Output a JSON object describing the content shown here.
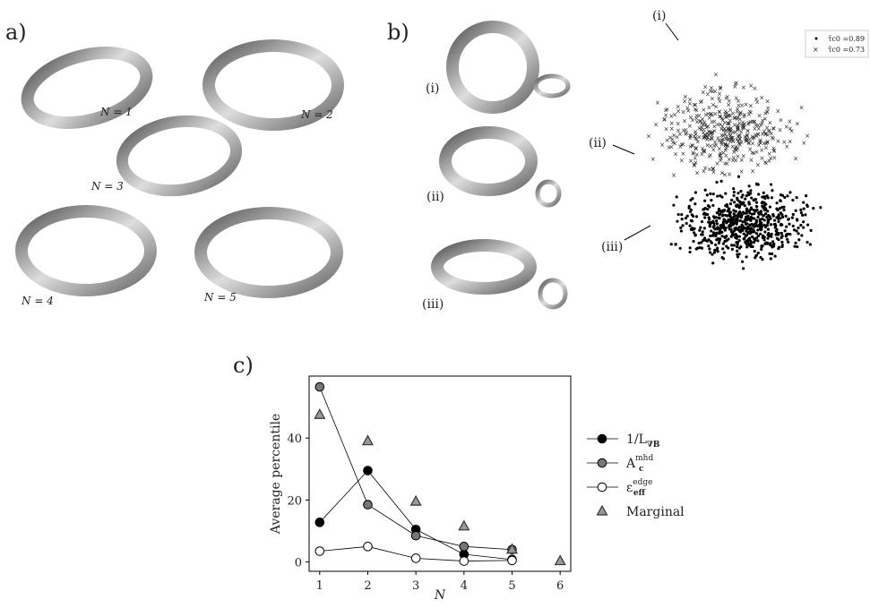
{
  "panel_a": {
    "label": "a)",
    "shapes": [
      "N = 1",
      "N = 2",
      "N = 3",
      "N = 4",
      "N = 5"
    ]
  },
  "panel_b": {
    "label": "b)",
    "insets": [
      "(i)",
      "(ii)",
      "(iii)"
    ],
    "scatter_labels": [
      "(i)",
      "(ii)",
      "(iii)"
    ],
    "legend": [
      "τ̄c0 =0.89",
      "τ̄c0 =0.73"
    ]
  },
  "chart_data": {
    "type": "line",
    "panel_label": "c)",
    "xlabel": "N",
    "ylabel": "Average percentile",
    "xlim": [
      0.78,
      6.22
    ],
    "ylim": [
      -3,
      60
    ],
    "xticks": [
      1,
      2,
      3,
      4,
      5,
      6
    ],
    "yticks": [
      0,
      20,
      40
    ],
    "series": [
      {
        "name": "1/L",
        "sub": "∇B",
        "color": "#000000",
        "marker": "circle",
        "x": [
          1,
          2,
          3,
          4,
          5
        ],
        "values": [
          12.8,
          29.5,
          10.5,
          2.5,
          0.8
        ]
      },
      {
        "name": "A",
        "sub": "c",
        "sup": "mhd",
        "color": "#777777",
        "marker": "circle",
        "x": [
          1,
          2,
          3,
          4,
          5
        ],
        "values": [
          56.5,
          18.5,
          8.5,
          5,
          4
        ]
      },
      {
        "name": "ε",
        "sub": "eff",
        "sup": "edge",
        "color": "#ffffff",
        "marker": "circle",
        "x": [
          1,
          2,
          3,
          4,
          5
        ],
        "values": [
          3.5,
          5,
          1.2,
          0.3,
          0.5
        ]
      },
      {
        "name": "Marginal",
        "color": "#999999",
        "marker": "triangle",
        "x": [
          1,
          2,
          3,
          4,
          5,
          6
        ],
        "values": [
          47.5,
          39,
          19.5,
          11.5,
          4,
          0.3
        ]
      }
    ]
  }
}
